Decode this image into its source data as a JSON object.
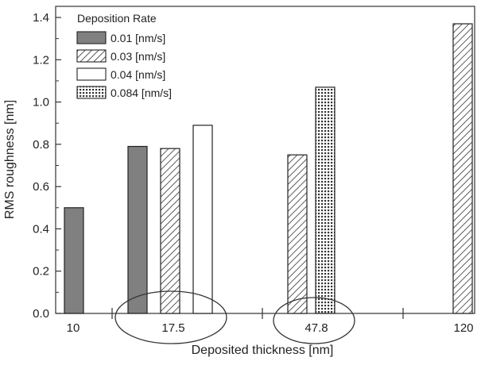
{
  "chart_data": {
    "type": "bar",
    "xlabel": "Deposited thickness [nm]",
    "ylabel": "RMS roughness [nm]",
    "ylim": [
      0,
      1.4
    ],
    "yticks": [
      0.0,
      0.2,
      0.4,
      0.6,
      0.8,
      1.0,
      1.2,
      1.4
    ],
    "ytick_labels": [
      "0.0",
      "0.2",
      "0.4",
      "0.6",
      "0.8",
      "1.0",
      "1.2",
      "1.4"
    ],
    "categories": [
      "10",
      "17.5",
      "47.8",
      "120"
    ],
    "legend_title": "Deposition Rate",
    "legend_position": "top-left",
    "series": [
      {
        "name": "0.01 [nm/s]",
        "pattern": "solid-gray",
        "color": "#808080"
      },
      {
        "name": "0.03 [nm/s]",
        "pattern": "diagonal-hatch",
        "color": "#ffffff"
      },
      {
        "name": "0.04 [nm/s]",
        "pattern": "white",
        "color": "#ffffff"
      },
      {
        "name": "0.084 [nm/s]",
        "pattern": "crosshatch",
        "color": "#ffffff"
      }
    ],
    "bars": [
      {
        "category": "10",
        "series": "0.01 [nm/s]",
        "value": 0.5
      },
      {
        "category": "17.5",
        "series": "0.01 [nm/s]",
        "value": 0.79
      },
      {
        "category": "17.5",
        "series": "0.03 [nm/s]",
        "value": 0.78
      },
      {
        "category": "17.5",
        "series": "0.04 [nm/s]",
        "value": 0.89
      },
      {
        "category": "47.8",
        "series": "0.03 [nm/s]",
        "value": 0.75
      },
      {
        "category": "47.8",
        "series": "0.084 [nm/s]",
        "value": 1.07
      },
      {
        "category": "120",
        "series": "0.03 [nm/s]",
        "value": 1.37
      }
    ],
    "annotations": [
      {
        "type": "ellipse",
        "around_category": "17.5"
      },
      {
        "type": "ellipse",
        "around_category": "47.8"
      }
    ]
  }
}
